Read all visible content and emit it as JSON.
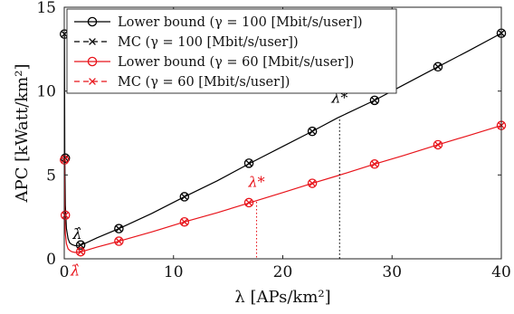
{
  "chart_data": {
    "type": "line",
    "xlabel": "λ [APs/km²]",
    "ylabel": "APC [kWatt/km²]",
    "xlim": [
      0,
      40
    ],
    "ylim": [
      0,
      15
    ],
    "xticks": [
      0,
      10,
      20,
      30,
      40
    ],
    "yticks": [
      0,
      5,
      10,
      15
    ],
    "x_tick_labels": [
      "0",
      "10",
      "20",
      "30",
      "40"
    ],
    "y_tick_labels": [
      "0",
      "5",
      "10",
      "15"
    ],
    "grid": false,
    "legend_position": "top-left",
    "colors": {
      "black": "#000000",
      "red": "#e8141b"
    },
    "series": [
      {
        "name": "Lower bound (γ = 100 [Mbit/s/user])",
        "color": "#000000",
        "marker": "circle",
        "linestyle": "solid",
        "x": [
          0.02,
          0.05,
          0.1,
          0.2,
          0.35,
          0.5,
          0.7,
          1.0,
          1.5,
          2.0,
          3.0,
          5.0,
          8.0,
          11.0,
          14.0,
          17.0,
          20.0,
          22.7,
          25.0,
          28.4,
          31.0,
          34.2,
          37.0,
          40.0
        ],
        "y": [
          13.4,
          6.0,
          3.2,
          1.8,
          1.2,
          0.95,
          0.85,
          0.78,
          0.82,
          0.95,
          1.25,
          1.8,
          2.7,
          3.7,
          4.65,
          5.7,
          6.7,
          7.6,
          8.4,
          9.45,
          10.35,
          11.45,
          12.4,
          13.45
        ]
      },
      {
        "name": "MC (γ = 100 [Mbit/s/user])",
        "color": "#000000",
        "marker": "x",
        "linestyle": "dashed",
        "x": [
          0.02,
          0.1,
          1.5,
          5.0,
          11.0,
          16.9,
          22.7,
          28.4,
          34.2,
          40.0
        ],
        "y": [
          13.4,
          6.0,
          0.82,
          1.8,
          3.7,
          5.7,
          7.6,
          9.45,
          11.45,
          13.45
        ]
      },
      {
        "name": "Lower bound (γ = 60 [Mbit/s/user])",
        "color": "#e8141b",
        "marker": "circle",
        "linestyle": "solid",
        "x": [
          0.02,
          0.05,
          0.1,
          0.2,
          0.35,
          0.5,
          0.7,
          1.0,
          1.5,
          2.0,
          3.0,
          5.0,
          8.0,
          11.0,
          14.0,
          17.0,
          20.0,
          22.7,
          25.0,
          28.4,
          31.0,
          34.2,
          37.0,
          40.0
        ],
        "y": [
          5.9,
          2.6,
          1.5,
          0.9,
          0.6,
          0.5,
          0.42,
          0.38,
          0.42,
          0.5,
          0.7,
          1.05,
          1.6,
          2.2,
          2.75,
          3.35,
          3.95,
          4.5,
          4.95,
          5.65,
          6.15,
          6.8,
          7.35,
          7.95
        ]
      },
      {
        "name": "MC (γ = 60 [Mbit/s/user])",
        "color": "#e8141b",
        "marker": "x",
        "linestyle": "dashed",
        "x": [
          0.02,
          0.1,
          1.5,
          5.0,
          11.0,
          16.9,
          22.7,
          28.4,
          34.2,
          40.0
        ],
        "y": [
          5.9,
          2.6,
          0.42,
          1.05,
          2.2,
          3.35,
          4.5,
          5.65,
          6.8,
          7.95
        ]
      }
    ],
    "annotations": [
      {
        "text": "λ̂",
        "color": "#000000",
        "x": 1.2,
        "y": 1.2
      },
      {
        "text": "λ̂",
        "color": "#e8141b",
        "x": 1.0,
        "y": -1.0
      },
      {
        "text": "λ*",
        "color": "#000000",
        "x": 25.2,
        "y": 9.3,
        "vline_x": 25.2,
        "vline_y_top": 8.3
      },
      {
        "text": "λ*",
        "color": "#e8141b",
        "x": 17.6,
        "y": 4.3,
        "vline_x": 17.6,
        "vline_y_top": 3.4
      }
    ]
  }
}
